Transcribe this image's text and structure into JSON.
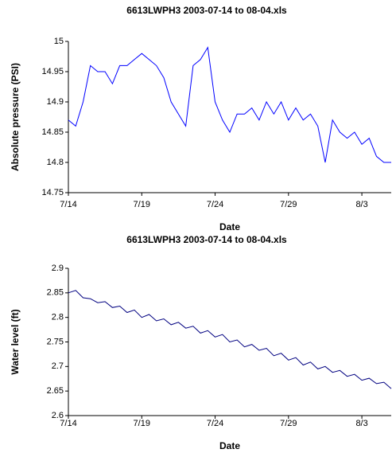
{
  "chart_data": [
    {
      "type": "line",
      "title": "6613LWPH3 2003-07-14 to 08-04.xls",
      "x_label": "Date",
      "y_label": "Absolute pressure (PSI)",
      "categories": [
        "7/14",
        null,
        null,
        null,
        null,
        null,
        null,
        null,
        null,
        null,
        "7/19",
        null,
        null,
        null,
        null,
        null,
        null,
        null,
        null,
        null,
        "7/24",
        null,
        null,
        null,
        null,
        null,
        null,
        null,
        null,
        null,
        "7/29",
        null,
        null,
        null,
        null,
        null,
        null,
        null,
        null,
        null,
        "8/3",
        null,
        null,
        null,
        null
      ],
      "series": [
        {
          "name": "Absolute pressure",
          "color": "#0000ff",
          "values": [
            14.87,
            14.86,
            14.9,
            14.96,
            14.95,
            14.95,
            14.93,
            14.96,
            14.96,
            14.97,
            14.98,
            14.97,
            14.96,
            14.94,
            14.9,
            14.88,
            14.86,
            14.96,
            14.97,
            14.99,
            14.9,
            14.87,
            14.85,
            14.88,
            14.88,
            14.89,
            14.87,
            14.9,
            14.88,
            14.9,
            14.87,
            14.89,
            14.87,
            14.88,
            14.86,
            14.8,
            14.87,
            14.85,
            14.84,
            14.85,
            14.83,
            14.84,
            14.81,
            14.8,
            14.8
          ]
        }
      ],
      "ylim": [
        14.75,
        15
      ],
      "yticks": [
        14.75,
        14.8,
        14.85,
        14.9,
        14.95,
        15
      ]
    },
    {
      "type": "line",
      "title": "6613LWPH3 2003-07-14 to 08-04.xls",
      "x_label": "Date",
      "y_label": "Water level (ft)",
      "categories": [
        "7/14",
        null,
        null,
        null,
        null,
        null,
        null,
        null,
        null,
        null,
        "7/19",
        null,
        null,
        null,
        null,
        null,
        null,
        null,
        null,
        null,
        "7/24",
        null,
        null,
        null,
        null,
        null,
        null,
        null,
        null,
        null,
        "7/29",
        null,
        null,
        null,
        null,
        null,
        null,
        null,
        null,
        null,
        "8/3",
        null,
        null,
        null,
        null
      ],
      "series": [
        {
          "name": "Water level",
          "color": "#000080",
          "values": [
            2.85,
            2.855,
            2.84,
            2.838,
            2.83,
            2.832,
            2.82,
            2.823,
            2.81,
            2.815,
            2.8,
            2.806,
            2.793,
            2.797,
            2.785,
            2.79,
            2.778,
            2.782,
            2.768,
            2.773,
            2.76,
            2.765,
            2.75,
            2.754,
            2.74,
            2.745,
            2.733,
            2.737,
            2.722,
            2.727,
            2.713,
            2.718,
            2.703,
            2.709,
            2.695,
            2.7,
            2.688,
            2.692,
            2.68,
            2.684,
            2.672,
            2.676,
            2.665,
            2.668,
            2.655
          ]
        }
      ],
      "ylim": [
        2.6,
        2.9
      ],
      "yticks": [
        2.6,
        2.65,
        2.7,
        2.75,
        2.8,
        2.85,
        2.9
      ]
    }
  ]
}
